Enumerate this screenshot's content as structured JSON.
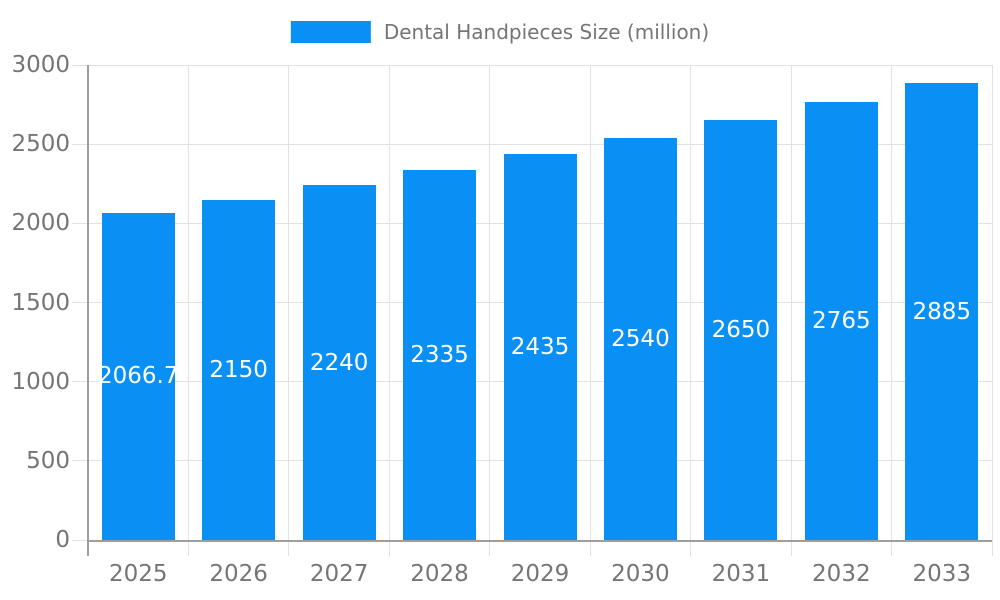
{
  "legend": {
    "label": "Dental Handpieces Size (million)"
  },
  "chart_data": {
    "type": "bar",
    "title": "",
    "xlabel": "",
    "ylabel": "",
    "series_name": "Dental Handpieces Size (million)",
    "categories": [
      "2025",
      "2026",
      "2027",
      "2028",
      "2029",
      "2030",
      "2031",
      "2032",
      "2033"
    ],
    "values": [
      2066.7,
      2150,
      2240,
      2335,
      2435,
      2540,
      2650,
      2765,
      2885
    ],
    "value_labels": [
      "2066.7",
      "2150",
      "2240",
      "2335",
      "2435",
      "2540",
      "2650",
      "2765",
      "2885"
    ],
    "ylim": [
      0,
      3000
    ],
    "yticks": [
      0,
      500,
      1000,
      1500,
      2000,
      2500,
      3000
    ],
    "ytick_labels": [
      "0",
      "500",
      "1000",
      "1500",
      "2000",
      "2500",
      "3000"
    ],
    "grid": true,
    "legend_position": "top",
    "colors": {
      "bar": "#0a90f5",
      "axis": "#9e9e9e",
      "grid": "#e2e2e2",
      "tick_text": "#757575",
      "value_text": "#ffffff",
      "background": "#ffffff"
    }
  }
}
